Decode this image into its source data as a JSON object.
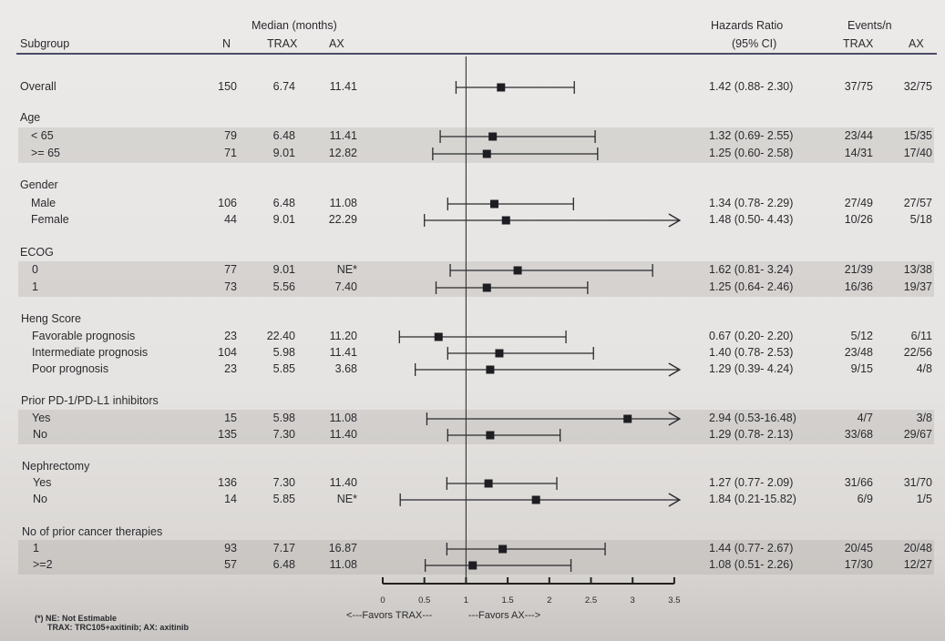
{
  "header": {
    "subgroup": "Subgroup",
    "n": "N",
    "median_group": "Median (months)",
    "median_trax": "TRAX",
    "median_ax": "AX",
    "hr_line1": "Hazards Ratio",
    "hr_line2": "(95% CI)",
    "events_group": "Events/n",
    "events_trax": "TRAX",
    "events_ax": "AX"
  },
  "chart_data": {
    "type": "forest",
    "xlim": [
      0,
      3.5
    ],
    "x_ticks": [
      "0",
      "0.5",
      "1",
      "1.5",
      "2",
      "2.5",
      "3",
      "3.5"
    ],
    "reference_line": 1,
    "xlabel_left": "<---Favors TRAX---",
    "xlabel_right": "---Favors AX--->",
    "rows": [
      {
        "label": "Overall",
        "group": true,
        "n": "150",
        "trax": "6.74",
        "ax": "11.41",
        "hr_text": "1.42 (0.88- 2.30)",
        "ev_trax": "37/75",
        "ev_ax": "32/75",
        "hr": 1.42,
        "lo": 0.88,
        "hi": 2.3
      },
      {
        "label": "Age",
        "heading": true
      },
      {
        "label": "< 65",
        "n": "79",
        "trax": "6.48",
        "ax": "11.41",
        "hr_text": "1.32 (0.69- 2.55)",
        "ev_trax": "23/44",
        "ev_ax": "15/35",
        "hr": 1.32,
        "lo": 0.69,
        "hi": 2.55,
        "shaded": true
      },
      {
        "label": ">= 65",
        "n": "71",
        "trax": "9.01",
        "ax": "12.82",
        "hr_text": "1.25 (0.60- 2.58)",
        "ev_trax": "14/31",
        "ev_ax": "17/40",
        "hr": 1.25,
        "lo": 0.6,
        "hi": 2.58,
        "shaded": true
      },
      {
        "label": "Gender",
        "heading": true
      },
      {
        "label": "Male",
        "n": "106",
        "trax": "6.48",
        "ax": "11.08",
        "hr_text": "1.34 (0.78- 2.29)",
        "ev_trax": "27/49",
        "ev_ax": "27/57",
        "hr": 1.34,
        "lo": 0.78,
        "hi": 2.29
      },
      {
        "label": "Female",
        "n": "44",
        "trax": "9.01",
        "ax": "22.29",
        "hr_text": "1.48 (0.50- 4.43)",
        "ev_trax": "10/26",
        "ev_ax": "5/18",
        "hr": 1.48,
        "lo": 0.5,
        "hi": 4.43
      },
      {
        "label": "ECOG",
        "heading": true
      },
      {
        "label": "0",
        "n": "77",
        "trax": "9.01",
        "ax": "NE*",
        "hr_text": "1.62 (0.81- 3.24)",
        "ev_trax": "21/39",
        "ev_ax": "13/38",
        "hr": 1.62,
        "lo": 0.81,
        "hi": 3.24,
        "shaded": true
      },
      {
        "label": "1",
        "n": "73",
        "trax": "5.56",
        "ax": "7.40",
        "hr_text": "1.25 (0.64- 2.46)",
        "ev_trax": "16/36",
        "ev_ax": "19/37",
        "hr": 1.25,
        "lo": 0.64,
        "hi": 2.46,
        "shaded": true
      },
      {
        "label": "Heng Score",
        "heading": true
      },
      {
        "label": "Favorable prognosis",
        "n": "23",
        "trax": "22.40",
        "ax": "11.20",
        "hr_text": "0.67 (0.20- 2.20)",
        "ev_trax": "5/12",
        "ev_ax": "6/11",
        "hr": 0.67,
        "lo": 0.2,
        "hi": 2.2
      },
      {
        "label": "Intermediate prognosis",
        "n": "104",
        "trax": "5.98",
        "ax": "11.41",
        "hr_text": "1.40 (0.78- 2.53)",
        "ev_trax": "23/48",
        "ev_ax": "22/56",
        "hr": 1.4,
        "lo": 0.78,
        "hi": 2.53
      },
      {
        "label": "Poor prognosis",
        "n": "23",
        "trax": "5.85",
        "ax": "3.68",
        "hr_text": "1.29 (0.39- 4.24)",
        "ev_trax": "9/15",
        "ev_ax": "4/8",
        "hr": 1.29,
        "lo": 0.39,
        "hi": 4.24
      },
      {
        "label": "Prior PD-1/PD-L1 inhibitors",
        "heading": true
      },
      {
        "label": "Yes",
        "n": "15",
        "trax": "5.98",
        "ax": "11.08",
        "hr_text": "2.94 (0.53-16.48)",
        "ev_trax": "4/7",
        "ev_ax": "3/8",
        "hr": 2.94,
        "lo": 0.53,
        "hi": 16.48,
        "shaded": true
      },
      {
        "label": "No",
        "n": "135",
        "trax": "7.30",
        "ax": "11.40",
        "hr_text": "1.29 (0.78- 2.13)",
        "ev_trax": "33/68",
        "ev_ax": "29/67",
        "hr": 1.29,
        "lo": 0.78,
        "hi": 2.13,
        "shaded": true
      },
      {
        "label": "Nephrectomy",
        "heading": true
      },
      {
        "label": "Yes",
        "n": "136",
        "trax": "7.30",
        "ax": "11.40",
        "hr_text": "1.27 (0.77- 2.09)",
        "ev_trax": "31/66",
        "ev_ax": "31/70",
        "hr": 1.27,
        "lo": 0.77,
        "hi": 2.09
      },
      {
        "label": "No",
        "n": "14",
        "trax": "5.85",
        "ax": "NE*",
        "hr_text": "1.84 (0.21-15.82)",
        "ev_trax": "6/9",
        "ev_ax": "1/5",
        "hr": 1.84,
        "lo": 0.21,
        "hi": 15.82
      },
      {
        "label": "No of prior cancer therapies",
        "heading": true
      },
      {
        "label": "1",
        "n": "93",
        "trax": "7.17",
        "ax": "16.87",
        "hr_text": "1.44 (0.77- 2.67)",
        "ev_trax": "20/45",
        "ev_ax": "20/48",
        "hr": 1.44,
        "lo": 0.77,
        "hi": 2.67,
        "shaded": true
      },
      {
        "label": ">=2",
        "n": "57",
        "trax": "6.48",
        "ax": "11.08",
        "hr_text": "1.08 (0.51- 2.26)",
        "ev_trax": "17/30",
        "ev_ax": "12/27",
        "hr": 1.08,
        "lo": 0.51,
        "hi": 2.26,
        "shaded": true
      }
    ]
  },
  "footnote": {
    "line1": "(*) NE: Not Estimable",
    "line2": "TRAX: TRC105+axitinib; AX: axitinib"
  },
  "colors": {
    "ink": "#2a2a2e",
    "rule": "#4a4a66"
  }
}
